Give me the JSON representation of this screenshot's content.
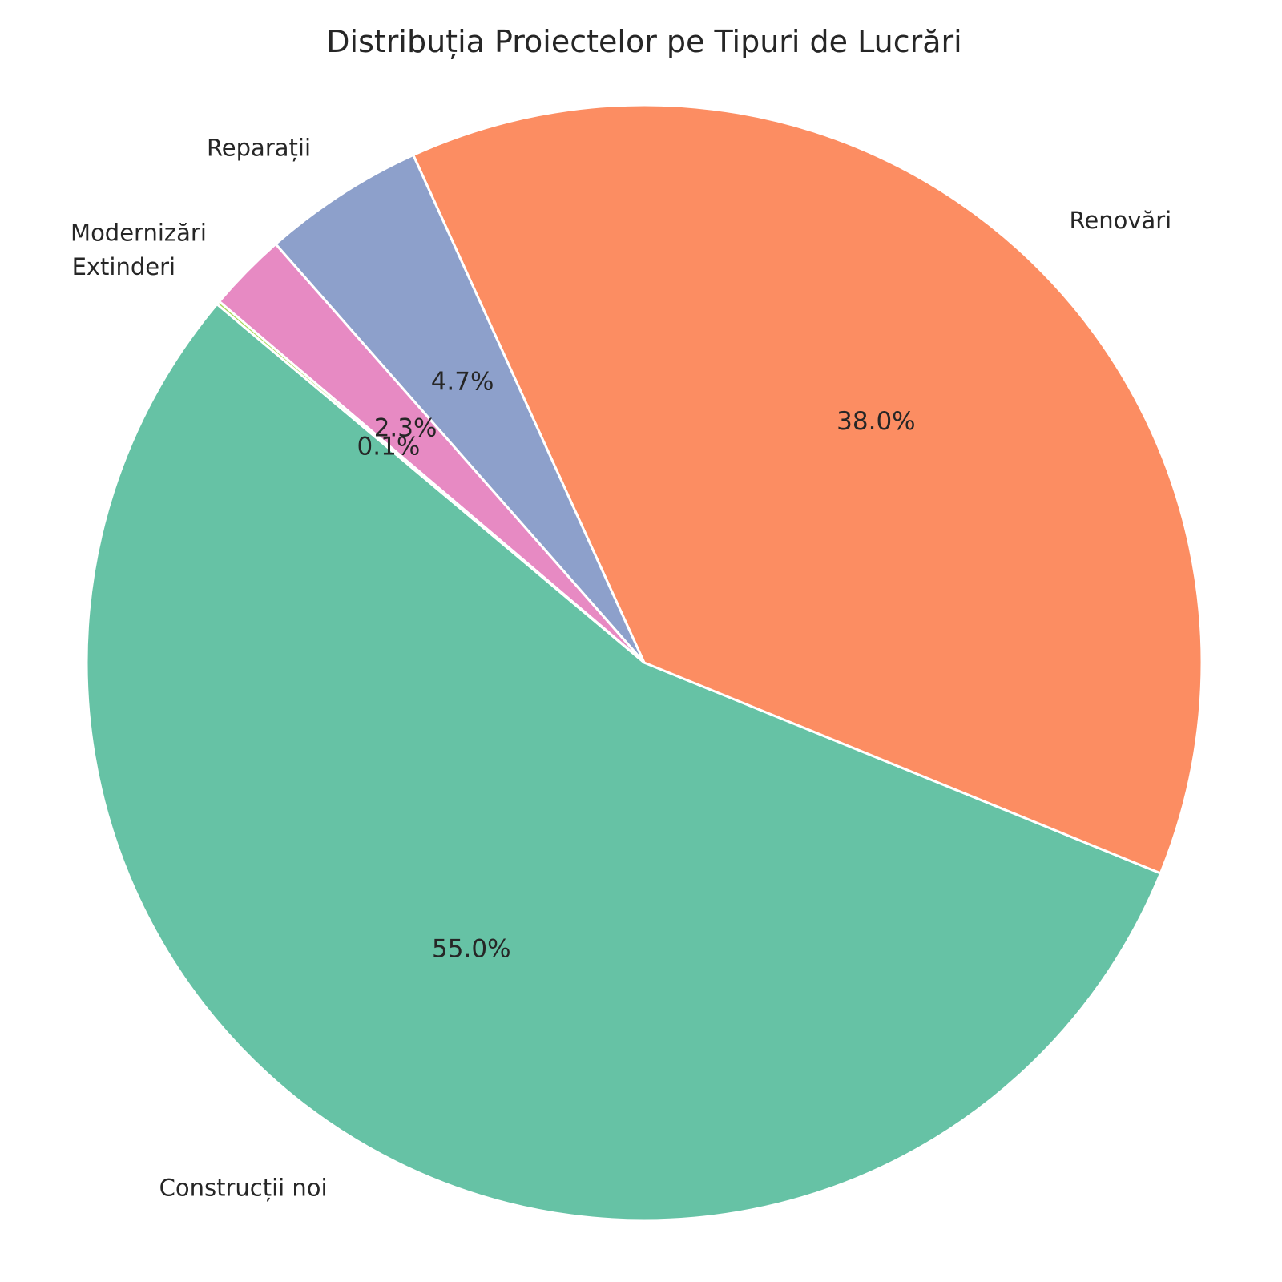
{
  "chart_data": {
    "type": "pie",
    "title": "Distribuția Proiectelor pe Tipuri de Lucrări",
    "categories": [
      "Construcții noi",
      "Renovări",
      "Reparații",
      "Modernizări",
      "Extinderi"
    ],
    "values": [
      55.0,
      38.0,
      4.7,
      2.3,
      0.1
    ],
    "percent_labels": [
      "55.0%",
      "38.0%",
      "4.7%",
      "2.3%",
      "0.1%"
    ],
    "colors": [
      "#66c2a5",
      "#fc8d62",
      "#8da0cb",
      "#e78ac3",
      "#a6d854"
    ],
    "start_angle_deg": 140,
    "direction": "counterclockwise"
  }
}
